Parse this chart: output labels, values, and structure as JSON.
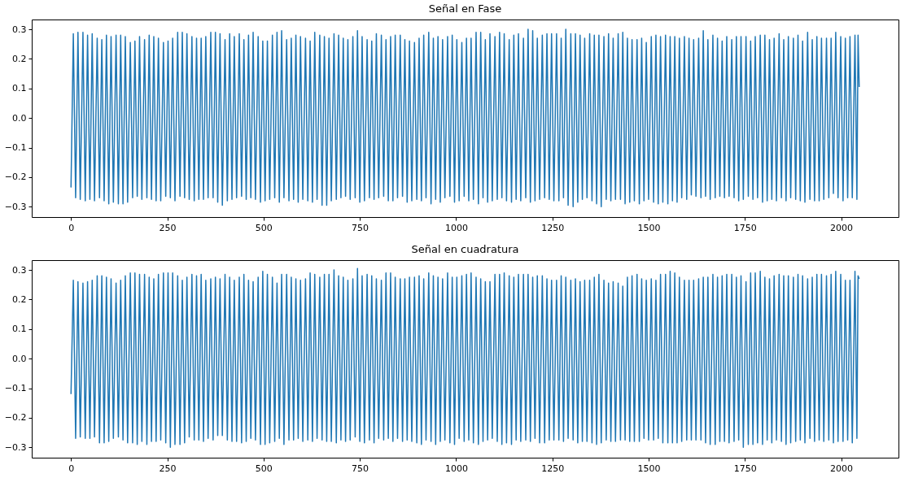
{
  "chart_data": [
    {
      "type": "line",
      "title": "Señal en Fase",
      "grid": false,
      "xlim": [
        -102,
        2149
      ],
      "ylim": [
        -0.335,
        0.333
      ],
      "xticks": [
        0,
        250,
        500,
        750,
        1000,
        1250,
        1500,
        1750,
        2000
      ],
      "yticks": [
        {
          "value": -0.3,
          "label": "−0.3"
        },
        {
          "value": -0.2,
          "label": "−0.2"
        },
        {
          "value": -0.1,
          "label": "−0.1"
        },
        {
          "value": 0,
          "label": "0.0"
        },
        {
          "value": 0.1,
          "label": "0.1"
        },
        {
          "value": 0.2,
          "label": "0.2"
        },
        {
          "value": 0.3,
          "label": "0.3"
        }
      ],
      "x": [
        0,
        6,
        12,
        18,
        24,
        31,
        37,
        43,
        49,
        55,
        61,
        68,
        74,
        80,
        86,
        92,
        98,
        104,
        110,
        117,
        123,
        129,
        135,
        141,
        147,
        154,
        160,
        166,
        172,
        178,
        184,
        191,
        197,
        203,
        209,
        215,
        221,
        227,
        233,
        240,
        246,
        252,
        258,
        264,
        270,
        277,
        283,
        289,
        295,
        301,
        307,
        314,
        320,
        326,
        332,
        338,
        344,
        350,
        356,
        363,
        369,
        375,
        381,
        387,
        393,
        400,
        406,
        412,
        418,
        424,
        430,
        437,
        443,
        449,
        455,
        461,
        467,
        473,
        479,
        486,
        492,
        498,
        504,
        510,
        516,
        523,
        529,
        535,
        541,
        547,
        553,
        560,
        566,
        572,
        578,
        584,
        590,
        596,
        602,
        609,
        615,
        621,
        627,
        633,
        639,
        646,
        652,
        658,
        664,
        670,
        676,
        683,
        689,
        695,
        701,
        707,
        713,
        719,
        725,
        732,
        738,
        744,
        750,
        756,
        762,
        769,
        775,
        781,
        787,
        793,
        799,
        806,
        812,
        818,
        824,
        830,
        836,
        842,
        848,
        855,
        861,
        867,
        873,
        879,
        885,
        892,
        898,
        904,
        910,
        916,
        922,
        929,
        935,
        941,
        947,
        953,
        959,
        965,
        971,
        978,
        984,
        990,
        996,
        1002,
        1008,
        1015,
        1021,
        1027,
        1033,
        1039,
        1045,
        1052,
        1058,
        1064,
        1070,
        1076,
        1082,
        1088,
        1094,
        1101,
        1107,
        1113,
        1119,
        1125,
        1131,
        1138,
        1144,
        1150,
        1156,
        1162,
        1168,
        1175,
        1181,
        1187,
        1193,
        1199,
        1205,
        1211,
        1217,
        1224,
        1230,
        1236,
        1242,
        1248,
        1254,
        1261,
        1267,
        1273,
        1279,
        1285,
        1291,
        1298,
        1304,
        1310,
        1316,
        1322,
        1328,
        1334,
        1340,
        1347,
        1353,
        1359,
        1365,
        1371,
        1377,
        1384,
        1390,
        1396,
        1402,
        1408,
        1414,
        1421,
        1427,
        1433,
        1439,
        1445,
        1451,
        1457,
        1463,
        1470,
        1476,
        1482,
        1488,
        1494,
        1500,
        1507,
        1513,
        1519,
        1525,
        1531,
        1537,
        1544,
        1550,
        1556,
        1562,
        1568,
        1574,
        1580,
        1586,
        1593,
        1599,
        1605,
        1611,
        1617,
        1623,
        1630,
        1636,
        1642,
        1648,
        1654,
        1660,
        1667,
        1673,
        1679,
        1685,
        1691,
        1697,
        1703,
        1709,
        1716,
        1722,
        1728,
        1734,
        1740,
        1746,
        1753,
        1759,
        1765,
        1771,
        1777,
        1783,
        1790,
        1796,
        1802,
        1808,
        1814,
        1820,
        1826,
        1832,
        1839,
        1845,
        1851,
        1857,
        1863,
        1869,
        1876,
        1882,
        1888,
        1894,
        1900,
        1906,
        1913,
        1919,
        1925,
        1931,
        1937,
        1943,
        1949,
        1955,
        1962,
        1968,
        1974,
        1980,
        1986,
        1992,
        1999,
        2005,
        2011,
        2017,
        2023,
        2029,
        2036,
        2041,
        2044,
        2047
      ],
      "series": [
        {
          "color": "#1f77b4",
          "values": [
            -0.235,
            0.285,
            -0.27,
            0.29,
            -0.275,
            0.29,
            -0.28,
            0.28,
            -0.275,
            0.285,
            -0.28,
            0.27,
            -0.27,
            0.265,
            -0.28,
            0.28,
            -0.29,
            0.275,
            -0.285,
            0.28,
            -0.29,
            0.28,
            -0.29,
            0.275,
            -0.285,
            0.255,
            -0.27,
            0.26,
            -0.265,
            0.275,
            -0.275,
            0.265,
            -0.27,
            0.28,
            -0.275,
            0.275,
            -0.28,
            0.27,
            -0.28,
            0.255,
            -0.265,
            0.26,
            -0.27,
            0.27,
            -0.28,
            0.29,
            -0.265,
            0.29,
            -0.27,
            0.285,
            -0.275,
            0.275,
            -0.28,
            0.27,
            -0.275,
            0.27,
            -0.275,
            0.275,
            -0.27,
            0.29,
            -0.27,
            0.29,
            -0.285,
            0.285,
            -0.295,
            0.265,
            -0.28,
            0.285,
            -0.275,
            0.275,
            -0.27,
            0.285,
            -0.265,
            0.265,
            -0.275,
            0.28,
            -0.27,
            0.29,
            -0.275,
            0.275,
            -0.285,
            0.26,
            -0.28,
            0.26,
            -0.275,
            0.28,
            -0.27,
            0.29,
            -0.285,
            0.295,
            -0.27,
            0.265,
            -0.28,
            0.27,
            -0.275,
            0.28,
            -0.285,
            0.275,
            -0.275,
            0.27,
            -0.28,
            0.26,
            -0.285,
            0.29,
            -0.275,
            0.28,
            -0.295,
            0.275,
            -0.295,
            0.27,
            -0.28,
            0.285,
            -0.275,
            0.28,
            -0.27,
            0.27,
            -0.265,
            0.265,
            -0.275,
            0.275,
            -0.27,
            0.295,
            -0.285,
            0.275,
            -0.28,
            0.265,
            -0.27,
            0.26,
            -0.275,
            0.285,
            -0.27,
            0.28,
            -0.265,
            0.265,
            -0.28,
            0.275,
            -0.28,
            0.28,
            -0.27,
            0.28,
            -0.265,
            0.265,
            -0.285,
            0.26,
            -0.28,
            0.255,
            -0.275,
            0.27,
            -0.28,
            0.28,
            -0.27,
            0.29,
            -0.29,
            0.27,
            -0.275,
            0.275,
            -0.285,
            0.265,
            -0.27,
            0.275,
            -0.265,
            0.28,
            -0.285,
            0.265,
            -0.28,
            0.255,
            -0.265,
            0.27,
            -0.28,
            0.27,
            -0.275,
            0.29,
            -0.29,
            0.29,
            -0.27,
            0.265,
            -0.285,
            0.285,
            -0.28,
            0.275,
            -0.275,
            0.29,
            -0.27,
            0.285,
            -0.28,
            0.265,
            -0.285,
            0.28,
            -0.275,
            0.285,
            -0.28,
            0.27,
            -0.27,
            0.3,
            -0.285,
            0.295,
            -0.28,
            0.27,
            -0.275,
            0.28,
            -0.27,
            0.285,
            -0.275,
            0.285,
            -0.28,
            0.285,
            -0.28,
            0.27,
            -0.27,
            0.3,
            -0.295,
            0.285,
            -0.3,
            0.285,
            -0.285,
            0.28,
            -0.275,
            0.27,
            -0.27,
            0.285,
            -0.28,
            0.28,
            -0.29,
            0.28,
            -0.3,
            0.275,
            -0.275,
            0.285,
            -0.28,
            0.27,
            -0.275,
            0.285,
            -0.275,
            0.29,
            -0.29,
            0.27,
            -0.285,
            0.265,
            -0.28,
            0.265,
            -0.29,
            0.27,
            -0.28,
            0.255,
            -0.275,
            0.275,
            -0.285,
            0.28,
            -0.29,
            0.275,
            -0.285,
            0.28,
            -0.29,
            0.275,
            -0.28,
            0.275,
            -0.285,
            0.27,
            -0.27,
            0.275,
            -0.275,
            0.27,
            -0.26,
            0.265,
            -0.265,
            0.27,
            -0.27,
            0.295,
            -0.265,
            0.265,
            -0.275,
            0.28,
            -0.27,
            0.27,
            -0.265,
            0.26,
            -0.27,
            0.275,
            -0.265,
            0.265,
            -0.27,
            0.275,
            -0.28,
            0.275,
            -0.275,
            0.275,
            -0.265,
            0.26,
            -0.275,
            0.275,
            -0.27,
            0.28,
            -0.285,
            0.28,
            -0.28,
            0.265,
            -0.275,
            0.27,
            -0.28,
            0.285,
            -0.27,
            0.265,
            -0.28,
            0.275,
            -0.27,
            0.27,
            -0.275,
            0.28,
            -0.28,
            0.26,
            -0.285,
            0.29,
            -0.275,
            0.265,
            -0.28,
            0.275,
            -0.28,
            0.27,
            -0.275,
            0.27,
            -0.27,
            0.27,
            -0.255,
            0.29,
            -0.27,
            0.275,
            -0.28,
            0.27,
            -0.27,
            0.275,
            -0.27,
            0.28,
            -0.275,
            0.28,
            0.105
          ]
        }
      ]
    },
    {
      "type": "line",
      "title": "Señal en cuadratura",
      "grid": false,
      "xlim": [
        -102,
        2149
      ],
      "ylim": [
        -0.335,
        0.333
      ],
      "xticks": [
        0,
        250,
        500,
        750,
        1000,
        1250,
        1500,
        1750,
        2000
      ],
      "yticks": [
        {
          "value": -0.3,
          "label": "−0.3"
        },
        {
          "value": -0.2,
          "label": "−0.2"
        },
        {
          "value": -0.1,
          "label": "−0.1"
        },
        {
          "value": 0,
          "label": "0.0"
        },
        {
          "value": 0.1,
          "label": "0.1"
        },
        {
          "value": 0.2,
          "label": "0.2"
        },
        {
          "value": 0.3,
          "label": "0.3"
        }
      ],
      "x": [
        0,
        6,
        12,
        18,
        24,
        31,
        37,
        43,
        49,
        55,
        61,
        68,
        74,
        80,
        86,
        92,
        98,
        104,
        110,
        117,
        123,
        129,
        135,
        141,
        147,
        154,
        160,
        166,
        172,
        178,
        184,
        191,
        197,
        203,
        209,
        215,
        221,
        227,
        233,
        240,
        246,
        252,
        258,
        264,
        270,
        277,
        283,
        289,
        295,
        301,
        307,
        314,
        320,
        326,
        332,
        338,
        344,
        350,
        356,
        363,
        369,
        375,
        381,
        387,
        393,
        400,
        406,
        412,
        418,
        424,
        430,
        437,
        443,
        449,
        455,
        461,
        467,
        473,
        479,
        486,
        492,
        498,
        504,
        510,
        516,
        523,
        529,
        535,
        541,
        547,
        553,
        560,
        566,
        572,
        578,
        584,
        590,
        596,
        602,
        609,
        615,
        621,
        627,
        633,
        639,
        646,
        652,
        658,
        664,
        670,
        676,
        683,
        689,
        695,
        701,
        707,
        713,
        719,
        725,
        732,
        738,
        744,
        750,
        756,
        762,
        769,
        775,
        781,
        787,
        793,
        799,
        806,
        812,
        818,
        824,
        830,
        836,
        842,
        848,
        855,
        861,
        867,
        873,
        879,
        885,
        892,
        898,
        904,
        910,
        916,
        922,
        929,
        935,
        941,
        947,
        953,
        959,
        965,
        971,
        978,
        984,
        990,
        996,
        1002,
        1008,
        1015,
        1021,
        1027,
        1033,
        1039,
        1045,
        1052,
        1058,
        1064,
        1070,
        1076,
        1082,
        1088,
        1094,
        1101,
        1107,
        1113,
        1119,
        1125,
        1131,
        1138,
        1144,
        1150,
        1156,
        1162,
        1168,
        1175,
        1181,
        1187,
        1193,
        1199,
        1205,
        1211,
        1217,
        1224,
        1230,
        1236,
        1242,
        1248,
        1254,
        1261,
        1267,
        1273,
        1279,
        1285,
        1291,
        1298,
        1304,
        1310,
        1316,
        1322,
        1328,
        1334,
        1340,
        1347,
        1353,
        1359,
        1365,
        1371,
        1377,
        1384,
        1390,
        1396,
        1402,
        1408,
        1414,
        1421,
        1427,
        1433,
        1439,
        1445,
        1451,
        1457,
        1463,
        1470,
        1476,
        1482,
        1488,
        1494,
        1500,
        1507,
        1513,
        1519,
        1525,
        1531,
        1537,
        1544,
        1550,
        1556,
        1562,
        1568,
        1574,
        1580,
        1586,
        1593,
        1599,
        1605,
        1611,
        1617,
        1623,
        1630,
        1636,
        1642,
        1648,
        1654,
        1660,
        1667,
        1673,
        1679,
        1685,
        1691,
        1697,
        1703,
        1709,
        1716,
        1722,
        1728,
        1734,
        1740,
        1746,
        1753,
        1759,
        1765,
        1771,
        1777,
        1783,
        1790,
        1796,
        1802,
        1808,
        1814,
        1820,
        1826,
        1832,
        1839,
        1845,
        1851,
        1857,
        1863,
        1869,
        1876,
        1882,
        1888,
        1894,
        1900,
        1906,
        1913,
        1919,
        1925,
        1931,
        1937,
        1943,
        1949,
        1955,
        1962,
        1968,
        1974,
        1980,
        1986,
        1992,
        1999,
        2005,
        2011,
        2017,
        2023,
        2029,
        2036,
        2041,
        2044,
        2047
      ],
      "series": [
        {
          "color": "#1f77b4",
          "values": [
            -0.12,
            0.265,
            -0.27,
            0.26,
            -0.265,
            0.255,
            -0.27,
            0.26,
            -0.27,
            0.265,
            -0.265,
            0.28,
            -0.285,
            0.28,
            -0.285,
            0.275,
            -0.28,
            0.27,
            -0.27,
            0.255,
            -0.265,
            0.265,
            -0.275,
            0.28,
            -0.285,
            0.29,
            -0.285,
            0.29,
            -0.29,
            0.285,
            -0.28,
            0.285,
            -0.29,
            0.275,
            -0.28,
            0.27,
            -0.28,
            0.285,
            -0.275,
            0.29,
            -0.285,
            0.29,
            -0.3,
            0.29,
            -0.29,
            0.28,
            -0.29,
            0.265,
            -0.285,
            0.275,
            -0.265,
            0.285,
            -0.275,
            0.28,
            -0.275,
            0.285,
            -0.28,
            0.265,
            -0.27,
            0.27,
            -0.275,
            0.275,
            -0.26,
            0.27,
            -0.26,
            0.285,
            -0.275,
            0.275,
            -0.28,
            0.265,
            -0.28,
            0.275,
            -0.285,
            0.285,
            -0.28,
            0.265,
            -0.27,
            0.26,
            -0.275,
            0.275,
            -0.29,
            0.295,
            -0.29,
            0.285,
            -0.285,
            0.275,
            -0.28,
            0.255,
            -0.27,
            0.285,
            -0.29,
            0.285,
            -0.275,
            0.275,
            -0.275,
            0.27,
            -0.27,
            0.265,
            -0.28,
            0.27,
            -0.275,
            0.29,
            -0.28,
            0.285,
            -0.27,
            0.275,
            -0.275,
            0.285,
            -0.28,
            0.285,
            -0.28,
            0.3,
            -0.285,
            0.28,
            -0.275,
            0.275,
            -0.28,
            0.265,
            -0.275,
            0.27,
            -0.265,
            0.305,
            -0.28,
            0.28,
            -0.285,
            0.285,
            -0.275,
            0.28,
            -0.285,
            0.27,
            -0.27,
            0.265,
            -0.275,
            0.29,
            -0.27,
            0.29,
            -0.28,
            0.275,
            -0.27,
            0.27,
            -0.28,
            0.27,
            -0.275,
            0.275,
            -0.28,
            0.275,
            -0.285,
            0.28,
            -0.29,
            0.27,
            -0.275,
            0.29,
            -0.28,
            0.28,
            -0.29,
            0.275,
            -0.28,
            0.27,
            -0.275,
            0.29,
            -0.285,
            0.275,
            -0.29,
            0.275,
            -0.27,
            0.28,
            -0.28,
            0.285,
            -0.275,
            0.29,
            -0.285,
            0.275,
            -0.29,
            0.27,
            -0.28,
            0.26,
            -0.275,
            0.26,
            -0.27,
            0.285,
            -0.28,
            0.285,
            -0.29,
            0.29,
            -0.285,
            0.28,
            -0.29,
            0.275,
            -0.275,
            0.285,
            -0.28,
            0.285,
            -0.275,
            0.285,
            -0.28,
            0.275,
            -0.27,
            0.28,
            -0.285,
            0.28,
            -0.285,
            0.27,
            -0.275,
            0.265,
            -0.275,
            0.265,
            -0.275,
            0.28,
            -0.28,
            0.275,
            -0.27,
            0.265,
            -0.275,
            0.27,
            -0.285,
            0.26,
            -0.28,
            0.265,
            -0.28,
            0.265,
            -0.285,
            0.275,
            -0.29,
            0.285,
            -0.285,
            0.265,
            -0.275,
            0.255,
            -0.28,
            0.26,
            -0.28,
            0.255,
            -0.275,
            0.245,
            -0.275,
            0.275,
            -0.28,
            0.28,
            -0.28,
            0.285,
            -0.28,
            0.27,
            -0.27,
            0.265,
            -0.275,
            0.27,
            -0.275,
            0.265,
            -0.27,
            0.285,
            -0.285,
            0.285,
            -0.285,
            0.295,
            -0.285,
            0.29,
            -0.285,
            0.275,
            -0.28,
            0.265,
            -0.275,
            0.265,
            -0.275,
            0.265,
            -0.275,
            0.27,
            -0.275,
            0.275,
            -0.285,
            0.275,
            -0.29,
            0.285,
            -0.29,
            0.275,
            -0.28,
            0.28,
            -0.28,
            0.285,
            -0.285,
            0.285,
            -0.28,
            0.275,
            -0.275,
            0.28,
            -0.3,
            0.26,
            -0.29,
            0.29,
            -0.29,
            0.29,
            -0.285,
            0.295,
            -0.29,
            0.275,
            -0.275,
            0.27,
            -0.285,
            0.28,
            -0.275,
            0.285,
            -0.28,
            0.28,
            -0.29,
            0.28,
            -0.285,
            0.275,
            -0.28,
            0.285,
            -0.275,
            0.28,
            -0.285,
            0.27,
            -0.27,
            0.275,
            -0.28,
            0.285,
            -0.275,
            0.285,
            -0.28,
            0.28,
            -0.275,
            0.285,
            -0.285,
            0.295,
            -0.28,
            0.285,
            -0.28,
            0.265,
            -0.275,
            0.265,
            -0.285,
            0.295,
            -0.27,
            0.28,
            0.27
          ]
        }
      ]
    }
  ]
}
